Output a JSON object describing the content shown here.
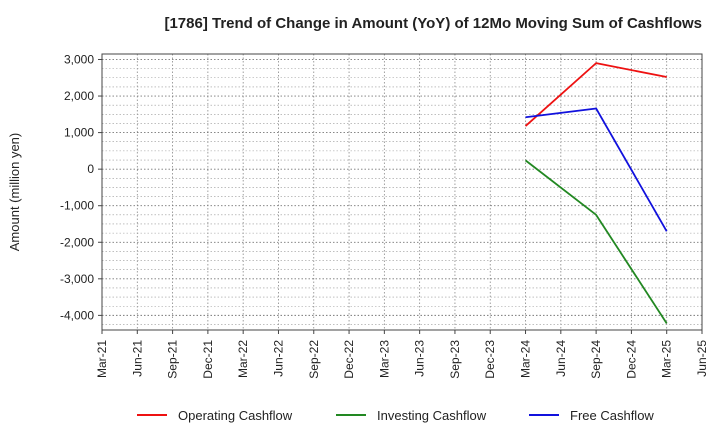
{
  "chart_data": {
    "type": "line",
    "title": "[1786]  Trend of Change in Amount (YoY) of 12Mo Moving Sum of Cashflows",
    "ylabel": "Amount (million yen)",
    "xlabel": "",
    "x_ticks": [
      "Mar-21",
      "Jun-21",
      "Sep-21",
      "Dec-21",
      "Mar-22",
      "Jun-22",
      "Sep-22",
      "Dec-22",
      "Mar-23",
      "Jun-23",
      "Sep-23",
      "Dec-23",
      "Mar-24",
      "Jun-24",
      "Sep-24",
      "Dec-24",
      "Mar-25",
      "Jun-25"
    ],
    "y_ticks": [
      3000,
      2000,
      1000,
      0,
      -1000,
      -2000,
      -3000,
      -4000
    ],
    "y_tick_labels": [
      "3,000",
      "2,000",
      "1,000",
      "0",
      "-1,000",
      "-2,000",
      "-3,000",
      "-4,000"
    ],
    "ylim": [
      -4400,
      3150
    ],
    "grid": true,
    "legend_position": "bottom",
    "series": [
      {
        "name": "Operating Cashflow",
        "color": "#ee1111",
        "x": [
          "Mar-24",
          "Sep-24",
          "Mar-25"
        ],
        "values": [
          1180,
          2900,
          2520
        ]
      },
      {
        "name": "Investing Cashflow",
        "color": "#228822",
        "x": [
          "Mar-24",
          "Sep-24",
          "Mar-25"
        ],
        "values": [
          240,
          -1250,
          -4220
        ]
      },
      {
        "name": "Free Cashflow",
        "color": "#1111dd",
        "x": [
          "Mar-24",
          "Sep-24",
          "Mar-25"
        ],
        "values": [
          1420,
          1660,
          -1700
        ]
      }
    ]
  }
}
